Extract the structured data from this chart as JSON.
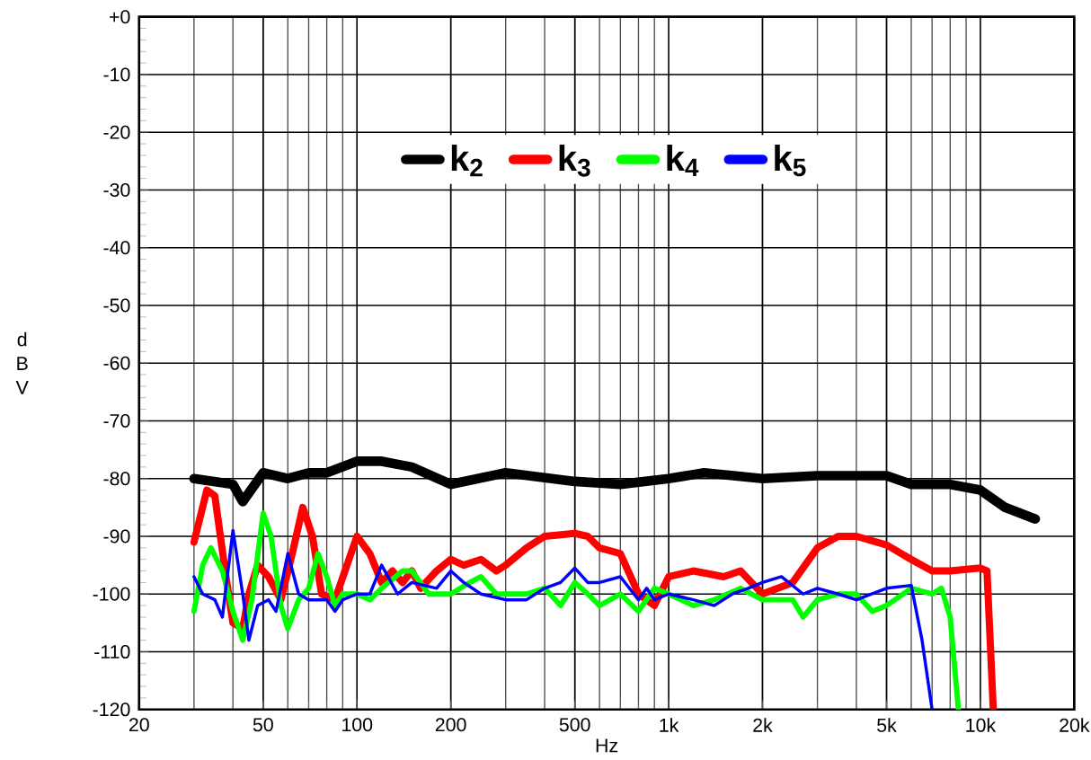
{
  "chart_data": {
    "type": "line",
    "xlabel": "Hz",
    "ylabel": "d B V",
    "log": "x",
    "grid": true,
    "legend": "top",
    "marker": "none",
    "line_style": "solid",
    "xlim": [
      20,
      20000
    ],
    "ylim": [
      -120,
      0
    ],
    "xticks": [
      20,
      50,
      100,
      200,
      500,
      {
        "value": 1000,
        "label": "1k"
      },
      {
        "value": 2000,
        "label": "2k"
      },
      {
        "value": 5000,
        "label": "5k"
      },
      {
        "value": 10000,
        "label": "10k"
      },
      {
        "value": 20000,
        "label": "20k"
      }
    ],
    "yticks": [
      {
        "value": 0,
        "label": "+0"
      },
      -10,
      -20,
      -30,
      -40,
      -50,
      -60,
      -70,
      -80,
      -90,
      -100,
      -110,
      -120
    ],
    "series": [
      {
        "name": "k$_{2}$",
        "color": "#000000",
        "x": [
          30,
          40,
          43,
          50,
          60,
          70,
          80,
          100,
          120,
          150,
          200,
          300,
          500,
          700,
          1000,
          1300,
          2000,
          3000,
          5000,
          6000,
          8000,
          10000,
          12000,
          15000
        ],
        "values": [
          -80,
          -81,
          -84,
          -79,
          -80,
          -79,
          -79,
          -77,
          -77,
          -78,
          -81,
          -79,
          -80.5,
          -81,
          -80,
          -79,
          -80,
          -79.5,
          -79.5,
          -81,
          -81,
          -82,
          -85,
          -87
        ]
      },
      {
        "name": "k$_{3}$",
        "color": "#ff0000",
        "x": [
          30,
          33,
          35,
          38,
          40,
          43,
          45,
          48,
          52,
          57,
          62,
          67,
          72,
          77,
          85,
          100,
          110,
          120,
          130,
          140,
          150,
          160,
          180,
          200,
          220,
          250,
          280,
          300,
          350,
          400,
          500,
          550,
          600,
          700,
          800,
          900,
          1000,
          1200,
          1500,
          1700,
          2000,
          2500,
          3000,
          3500,
          4000,
          5000,
          6000,
          7000,
          8000,
          10000,
          10500,
          11000
        ],
        "values": [
          -91,
          -82,
          -83,
          -97,
          -105,
          -106,
          -100,
          -95,
          -97,
          -101,
          -93,
          -85,
          -90,
          -100,
          -101,
          -90,
          -93,
          -98,
          -96,
          -98,
          -96,
          -99,
          -96,
          -94,
          -95,
          -94,
          -96,
          -95,
          -92,
          -90,
          -89.5,
          -90,
          -92,
          -93,
          -100,
          -102,
          -97,
          -96,
          -97,
          -96,
          -100,
          -98,
          -92,
          -90,
          -90,
          -91.5,
          -94,
          -96,
          -96,
          -95.5,
          -96,
          -120
        ]
      },
      {
        "name": "k$_{4}$",
        "color": "#00ff00",
        "x": [
          30,
          32,
          34,
          37,
          40,
          43,
          46,
          50,
          53,
          57,
          60,
          65,
          70,
          75,
          80,
          85,
          90,
          100,
          110,
          120,
          140,
          150,
          170,
          200,
          230,
          250,
          280,
          300,
          350,
          400,
          450,
          500,
          550,
          600,
          700,
          800,
          900,
          1000,
          1200,
          1400,
          1700,
          2000,
          2500,
          2700,
          3000,
          3500,
          4000,
          4500,
          5000,
          6000,
          7000,
          7500,
          8000,
          8500
        ],
        "values": [
          -103,
          -95,
          -92,
          -96,
          -103,
          -108,
          -101,
          -86,
          -90,
          -102,
          -106,
          -101,
          -99,
          -93,
          -97,
          -102,
          -100,
          -100,
          -101,
          -99,
          -96,
          -96,
          -100,
          -100,
          -98,
          -97,
          -100,
          -100,
          -100,
          -99,
          -102,
          -98,
          -100,
          -102,
          -100,
          -103,
          -99,
          -100,
          -102,
          -101,
          -99,
          -101,
          -101,
          -104,
          -101,
          -100,
          -100,
          -103,
          -102,
          -99,
          -100,
          -99,
          -104,
          -120
        ]
      },
      {
        "name": "k$_{5}$",
        "color": "#0000ff",
        "x": [
          30,
          32,
          35,
          37,
          40,
          43,
          45,
          48,
          52,
          55,
          60,
          65,
          70,
          80,
          85,
          90,
          100,
          110,
          120,
          135,
          150,
          180,
          200,
          220,
          250,
          300,
          350,
          400,
          450,
          500,
          550,
          600,
          700,
          800,
          850,
          900,
          1000,
          1200,
          1400,
          1600,
          1800,
          2000,
          2300,
          2700,
          3000,
          3500,
          4000,
          5000,
          6000,
          6500,
          7000
        ],
        "values": [
          -97,
          -100,
          -101,
          -104,
          -89,
          -100,
          -108,
          -102,
          -101,
          -103,
          -93,
          -100,
          -101,
          -101,
          -103,
          -101,
          -100,
          -100,
          -95,
          -100,
          -98,
          -99,
          -96,
          -98,
          -100,
          -101,
          -101,
          -99,
          -98,
          -95.5,
          -98,
          -98,
          -97,
          -101,
          -99,
          -101,
          -100,
          -101,
          -102,
          -100,
          -99,
          -98,
          -97,
          -100,
          -99,
          -100,
          -101,
          -99,
          -98.5,
          -108,
          -120
        ]
      }
    ]
  }
}
